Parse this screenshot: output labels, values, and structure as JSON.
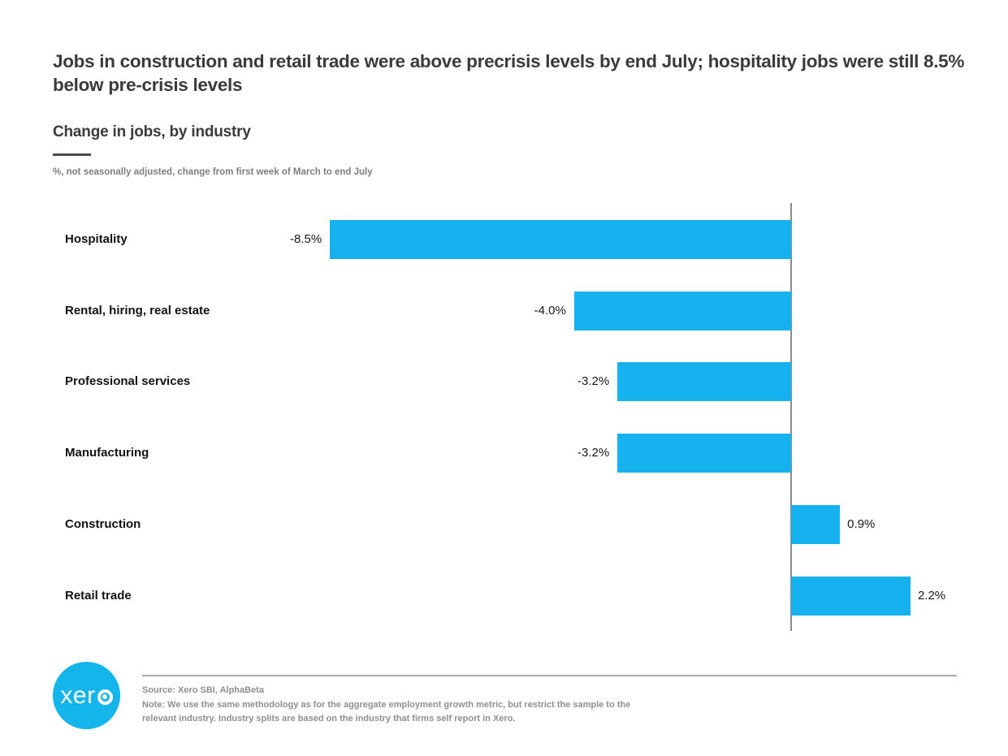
{
  "page": {
    "headline": "Jobs in construction and retail trade were above precrisis levels by end July; hospitality jobs were still 8.5% below pre-crisis levels"
  },
  "chart": {
    "title": "Change in jobs, by industry",
    "unit_note": "%, not seasonally adjusted, change from first week of March to end July"
  },
  "chart_data": {
    "type": "bar",
    "orientation": "horizontal",
    "title": "Change in jobs, by industry",
    "subtitle": "%, not seasonally adjusted, change from first week of March to end July",
    "categories": [
      "Hospitality",
      "Rental, hiring, real estate",
      "Professional services",
      "Manufacturing",
      "Construction",
      "Retail trade"
    ],
    "values": [
      -8.5,
      -4.0,
      -3.2,
      -3.2,
      0.9,
      2.2
    ],
    "value_labels": [
      "-8.5%",
      "-4.0%",
      "-3.2%",
      "-3.2%",
      "0.9%",
      "2.2%"
    ],
    "unit": "%",
    "baseline": 0,
    "xlim": [
      -9,
      4
    ],
    "grid": false,
    "legend": false,
    "bar_color": "#16B2F0",
    "axis_color": "#8C8C8C"
  },
  "footer": {
    "logo_text": "xero",
    "logo_color": "#13B5EA",
    "source": "Source: Xero SBI, AlphaBeta",
    "note": "Note: We use the same methodology as for the aggregate employment growth metric, but restrict the sample to the relevant industry. Industry splits are based on the industry that firms self report in Xero."
  }
}
